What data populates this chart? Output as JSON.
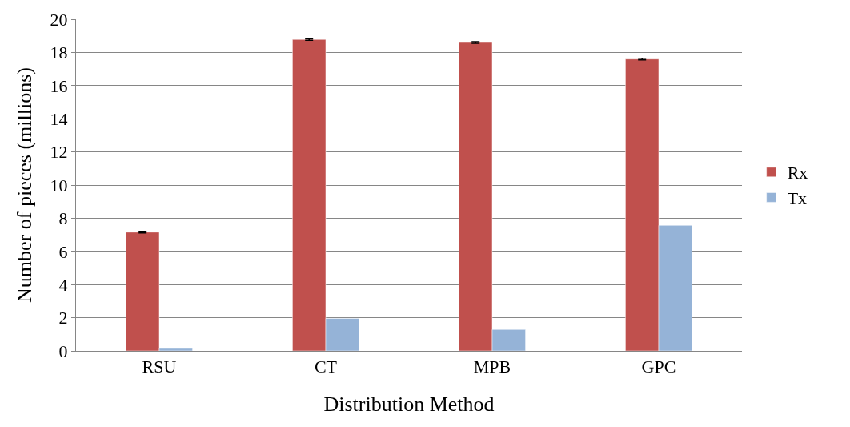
{
  "chart_data": {
    "type": "bar",
    "xlabel": "Distribution Method",
    "ylabel": "Number of pieces (millions)",
    "categories": [
      "RSU",
      "CT",
      "MPB",
      "GPC"
    ],
    "series": [
      {
        "name": "Rx",
        "color": "#c0504d",
        "values": [
          7.16,
          18.78,
          18.6,
          17.6
        ],
        "errors": [
          0.05,
          0.05,
          0.05,
          0.05
        ]
      },
      {
        "name": "Tx",
        "color": "#95b3d7",
        "values": [
          0.15,
          1.96,
          1.29,
          7.57
        ]
      }
    ],
    "ylim": [
      0,
      20
    ],
    "yticks": [
      0,
      2,
      4,
      6,
      8,
      10,
      12,
      14,
      16,
      18,
      20
    ],
    "grid": "y",
    "legend": "right"
  }
}
